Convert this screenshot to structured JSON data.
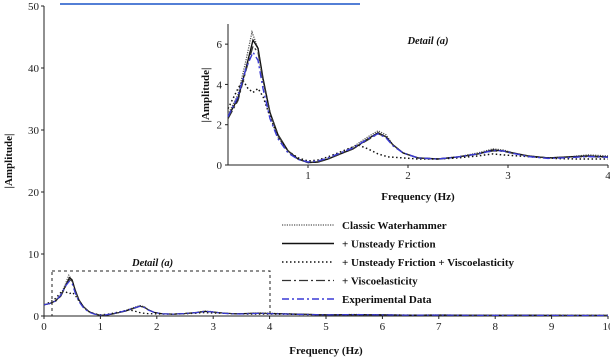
{
  "colors": {
    "axis": "#222222",
    "experimental": "#3a3ad6",
    "watermark": "#1a55c8"
  },
  "chart_data": [
    {
      "type": "line",
      "xlabel": "Frequency (Hz)",
      "ylabel": "|Amplitude|",
      "xlim": [
        0,
        10
      ],
      "ylim": [
        0,
        50
      ],
      "xticks": [
        "0",
        "1",
        "2",
        "3",
        "4",
        "5",
        "6",
        "7",
        "8",
        "9",
        "10"
      ],
      "yticks": [
        "0",
        "10",
        "20",
        "30",
        "40",
        "50"
      ],
      "annotation": "Detail (a)",
      "series": [
        {
          "name": "Classic Waterhammer",
          "style": "double-dot",
          "x": [
            0,
            0.1,
            0.2,
            0.3,
            0.38,
            0.44,
            0.5,
            0.55,
            0.62,
            0.7,
            0.8,
            0.9,
            1.0,
            1.1,
            1.2,
            1.3,
            1.45,
            1.6,
            1.7,
            1.78,
            1.85,
            1.95,
            2.1,
            2.3,
            2.5,
            2.7,
            2.85,
            2.95,
            3.05,
            3.2,
            3.4,
            3.6,
            3.8,
            4.0,
            4.5,
            5.0,
            5.5,
            6.0,
            6.5,
            7.0,
            7.5,
            8.0,
            8.5,
            9.0,
            9.5,
            10.0
          ],
          "y": [
            1.8,
            2.0,
            2.5,
            3.5,
            5.2,
            6.6,
            5.8,
            4.2,
            2.6,
            1.4,
            0.7,
            0.3,
            0.12,
            0.15,
            0.3,
            0.5,
            0.9,
            1.4,
            1.7,
            1.5,
            1.0,
            0.6,
            0.35,
            0.3,
            0.4,
            0.6,
            0.8,
            0.75,
            0.6,
            0.45,
            0.35,
            0.4,
            0.5,
            0.45,
            0.3,
            0.2,
            0.25,
            0.2,
            0.15,
            0.18,
            0.15,
            0.12,
            0.15,
            0.12,
            0.1,
            0.1
          ]
        },
        {
          "name": "+ Unsteady Friction",
          "style": "solid",
          "x": [
            0,
            0.1,
            0.2,
            0.3,
            0.38,
            0.45,
            0.5,
            0.55,
            0.62,
            0.7,
            0.8,
            0.9,
            1.0,
            1.1,
            1.2,
            1.3,
            1.45,
            1.6,
            1.7,
            1.78,
            1.85,
            1.95,
            2.1,
            2.3,
            2.5,
            2.7,
            2.85,
            2.95,
            3.05,
            3.2,
            3.4,
            3.6,
            3.8,
            4.0,
            4.5,
            5.0,
            5.5,
            6.0,
            6.5,
            7.0,
            7.5,
            8.0,
            8.5,
            9.0,
            9.5,
            10.0
          ],
          "y": [
            1.8,
            2.0,
            2.4,
            3.3,
            4.8,
            6.2,
            5.8,
            4.3,
            2.6,
            1.5,
            0.7,
            0.3,
            0.12,
            0.15,
            0.3,
            0.5,
            0.8,
            1.3,
            1.6,
            1.4,
            1.0,
            0.6,
            0.35,
            0.3,
            0.4,
            0.55,
            0.75,
            0.7,
            0.6,
            0.45,
            0.35,
            0.4,
            0.45,
            0.4,
            0.3,
            0.2,
            0.22,
            0.18,
            0.15,
            0.16,
            0.14,
            0.12,
            0.14,
            0.12,
            0.1,
            0.1
          ]
        },
        {
          "name": "+ Unsteady Friction + Viscoelasticity",
          "style": "dotted",
          "x": [
            0,
            0.1,
            0.2,
            0.3,
            0.35,
            0.4,
            0.45,
            0.5,
            0.55,
            0.62,
            0.7,
            0.8,
            0.9,
            1.0,
            1.1,
            1.2,
            1.35,
            1.5,
            1.6,
            1.7,
            1.8,
            1.95,
            2.1,
            2.3,
            2.5,
            2.7,
            2.85,
            2.95,
            3.1,
            3.3,
            3.5,
            3.7,
            4.0,
            4.5,
            5.0,
            5.5,
            6.0,
            6.5,
            7.0,
            7.5,
            8.0,
            8.5,
            9.0,
            9.5,
            10.0
          ],
          "y": [
            1.8,
            2.2,
            2.8,
            3.8,
            4.2,
            3.8,
            3.6,
            3.8,
            3.4,
            2.4,
            1.4,
            0.7,
            0.35,
            0.2,
            0.25,
            0.4,
            0.7,
            1.0,
            0.8,
            0.55,
            0.4,
            0.35,
            0.3,
            0.3,
            0.35,
            0.45,
            0.55,
            0.5,
            0.45,
            0.38,
            0.32,
            0.3,
            0.3,
            0.25,
            0.2,
            0.2,
            0.18,
            0.15,
            0.15,
            0.14,
            0.12,
            0.12,
            0.11,
            0.1,
            0.1
          ]
        },
        {
          "name": "+ Viscoelasticity",
          "style": "dash-dot",
          "x": [
            0,
            0.1,
            0.2,
            0.3,
            0.38,
            0.45,
            0.5,
            0.55,
            0.62,
            0.7,
            0.8,
            0.9,
            1.0,
            1.1,
            1.2,
            1.3,
            1.45,
            1.6,
            1.7,
            1.78,
            1.85,
            1.95,
            2.1,
            2.3,
            2.5,
            2.7,
            2.85,
            2.95,
            3.05,
            3.2,
            3.4,
            3.6,
            3.8,
            4.0,
            4.5,
            5.0,
            5.5,
            6.0,
            6.5,
            7.0,
            7.5,
            8.0,
            8.5,
            9.0,
            9.5,
            10.0
          ],
          "y": [
            1.8,
            2.0,
            2.3,
            3.2,
            4.7,
            5.9,
            5.6,
            4.2,
            2.6,
            1.5,
            0.7,
            0.3,
            0.13,
            0.15,
            0.3,
            0.5,
            0.8,
            1.25,
            1.55,
            1.4,
            1.0,
            0.6,
            0.35,
            0.3,
            0.4,
            0.55,
            0.7,
            0.68,
            0.58,
            0.45,
            0.35,
            0.38,
            0.42,
            0.38,
            0.28,
            0.2,
            0.2,
            0.18,
            0.15,
            0.15,
            0.14,
            0.12,
            0.13,
            0.12,
            0.1,
            0.1
          ]
        },
        {
          "name": "Experimental Data",
          "style": "dash-dot-blue",
          "x": [
            0,
            0.1,
            0.2,
            0.3,
            0.38,
            0.45,
            0.5,
            0.55,
            0.62,
            0.7,
            0.8,
            0.9,
            1.0,
            1.1,
            1.2,
            1.3,
            1.45,
            1.6,
            1.7,
            1.78,
            1.85,
            1.95,
            2.1,
            2.3,
            2.5,
            2.7,
            2.85,
            2.95,
            3.05,
            3.2,
            3.4,
            3.6,
            3.8,
            4.0,
            4.5,
            5.0,
            5.5,
            6.0,
            6.5,
            7.0,
            7.5,
            8.0,
            8.5,
            9.0,
            9.5,
            10.0
          ],
          "y": [
            1.8,
            2.0,
            2.4,
            3.4,
            4.8,
            5.6,
            5.2,
            3.8,
            2.3,
            1.3,
            0.6,
            0.28,
            0.15,
            0.2,
            0.35,
            0.55,
            0.85,
            1.3,
            1.55,
            1.35,
            0.95,
            0.6,
            0.35,
            0.3,
            0.4,
            0.55,
            0.72,
            0.7,
            0.58,
            0.42,
            0.33,
            0.36,
            0.42,
            0.38,
            0.25,
            0.18,
            0.22,
            0.18,
            0.13,
            0.15,
            0.12,
            0.1,
            0.12,
            0.1,
            0.08,
            0.08
          ]
        }
      ]
    },
    {
      "type": "line",
      "title": "Detail (a)",
      "xlabel": "Frequency (Hz)",
      "ylabel": "|Amplitude|",
      "xlim": [
        0,
        4
      ],
      "ylim": [
        0,
        7
      ],
      "xticks": [
        "1",
        "2",
        "3",
        "4"
      ],
      "yticks": [
        "0",
        "2",
        "4",
        "6"
      ]
    }
  ]
}
